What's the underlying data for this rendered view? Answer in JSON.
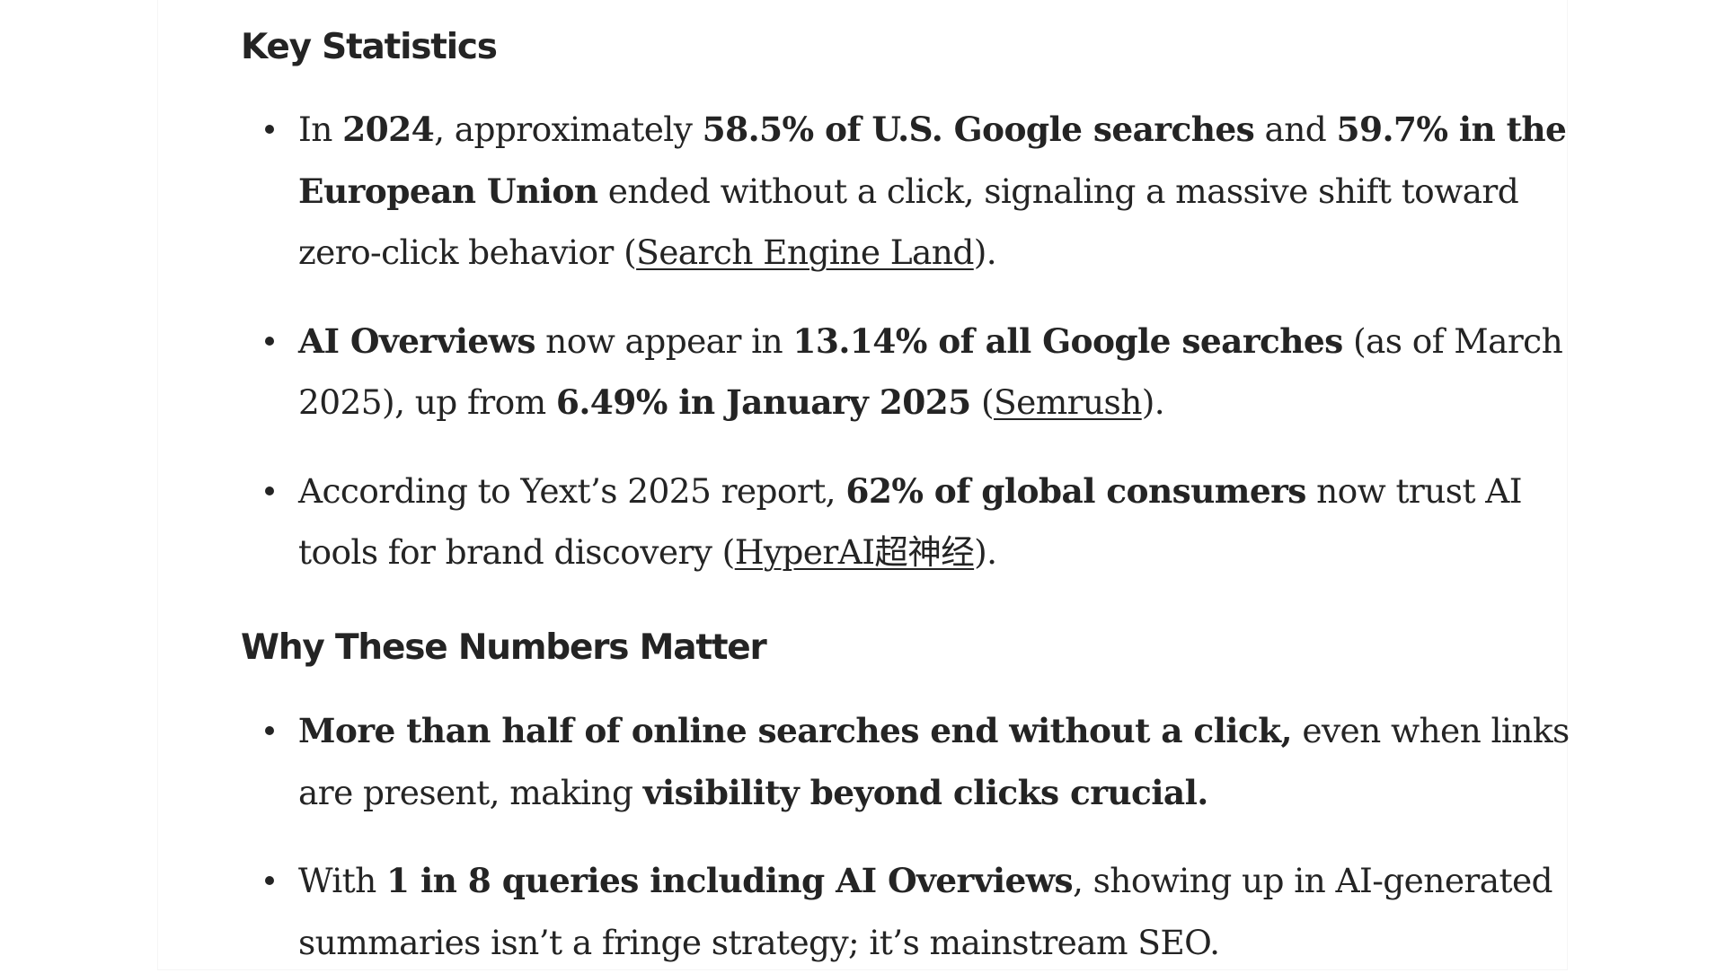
{
  "sections": [
    {
      "heading": "Key Statistics",
      "items": [
        {
          "lines": [
            [
              {
                "t": "In "
              },
              {
                "t": "2024",
                "b": true
              },
              {
                "t": ", approximately "
              },
              {
                "t": "58.5% of U.S. Google searches",
                "b": true
              },
              {
                "t": " and "
              },
              {
                "t": "59.7% in the",
                "b": true
              }
            ],
            [
              {
                "t": "European Union",
                "b": true
              },
              {
                "t": " ended without a click, signaling a massive shift toward"
              }
            ],
            [
              {
                "t": "zero-click behavior ("
              },
              {
                "t": "Search Engine Land",
                "link": true
              },
              {
                "t": ")."
              }
            ]
          ]
        },
        {
          "lines": [
            [
              {
                "t": "AI Overviews",
                "b": true
              },
              {
                "t": " now appear in "
              },
              {
                "t": "13.14% of all Google searches",
                "b": true
              },
              {
                "t": " (as of March"
              }
            ],
            [
              {
                "t": "2025), up from "
              },
              {
                "t": "6.49% in January 2025",
                "b": true
              },
              {
                "t": " ("
              },
              {
                "t": "Semrush",
                "link": true
              },
              {
                "t": ")."
              }
            ]
          ]
        },
        {
          "lines": [
            [
              {
                "t": "According to Yext’s 2025 report, "
              },
              {
                "t": "62% of global consumers",
                "b": true
              },
              {
                "t": " now trust AI"
              }
            ],
            [
              {
                "t": "tools for brand discovery ("
              },
              {
                "t": "HyperAI超神经",
                "link": true
              },
              {
                "t": ")."
              }
            ]
          ]
        }
      ]
    },
    {
      "heading": "Why These Numbers Matter",
      "items": [
        {
          "lines": [
            [
              {
                "t": "More than half of online searches end without a click,",
                "b": true
              },
              {
                "t": " even when links"
              }
            ],
            [
              {
                "t": "are present, making "
              },
              {
                "t": "visibility beyond clicks crucial.",
                "b": true
              }
            ]
          ]
        },
        {
          "lines": [
            [
              {
                "t": "With "
              },
              {
                "t": "1 in 8 queries including AI Overviews",
                "b": true
              },
              {
                "t": ", showing up in AI-generated"
              }
            ],
            [
              {
                "t": "summaries isn’t a fringe strategy; it’s mainstream SEO."
              }
            ]
          ]
        }
      ]
    }
  ]
}
